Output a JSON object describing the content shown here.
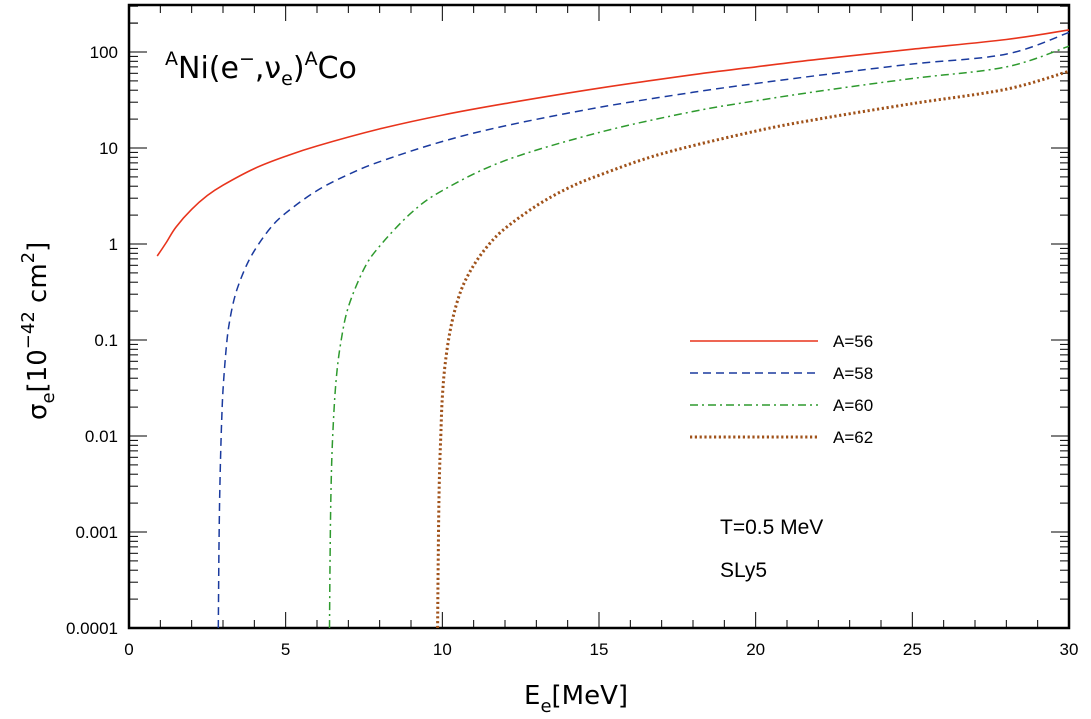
{
  "chart_data": {
    "type": "line",
    "title": "",
    "reaction": {
      "sup_a": "A",
      "ni": "Ni(e",
      "minus": "−",
      "comma": ",ν",
      "sub_e": "e",
      "close": ")",
      "sup_b": "A",
      "co": "Co"
    },
    "xlabel": {
      "main": "E",
      "sub": "e",
      "rest": "[MeV]"
    },
    "ylabel": {
      "sigma": "σ",
      "sub": "e",
      "open": "[10",
      "sup": "−42",
      "unit": " cm",
      "sup2": "2",
      "close": "]"
    },
    "xlim": [
      0,
      30
    ],
    "ylim": [
      0.0001,
      300
    ],
    "yscale": "log",
    "grid": false,
    "legend_position": "right-middle",
    "x_ticks": [
      0,
      5,
      10,
      15,
      20,
      25,
      30
    ],
    "x_tick_labels": [
      "0",
      "5",
      "10",
      "15",
      "20",
      "25",
      "30"
    ],
    "y_ticks": [
      0.0001,
      0.001,
      0.01,
      0.1,
      1,
      10,
      100
    ],
    "y_tick_labels": [
      "0.0001",
      "0.001",
      "0.01",
      "0.1",
      "1",
      "10",
      "100"
    ],
    "annotations": [
      "T=0.5 MeV",
      "SLy5"
    ],
    "series": [
      {
        "name": "A=56",
        "color": "#e8341c",
        "dash": "solid",
        "x": [
          0.9,
          1.2,
          1.5,
          2,
          2.5,
          3,
          4,
          5,
          6,
          8,
          10,
          12,
          15,
          18,
          20,
          22,
          25,
          28,
          30
        ],
        "y": [
          0.75,
          1.05,
          1.5,
          2.3,
          3.2,
          4.1,
          6.1,
          8.2,
          10.5,
          15.8,
          22,
          29,
          42,
          58,
          70,
          84,
          107,
          135,
          170
        ]
      },
      {
        "name": "A=58",
        "color": "#1a3a9e",
        "dash": "dashed",
        "x": [
          2.85,
          2.87,
          2.9,
          2.95,
          3.0,
          3.1,
          3.2,
          3.4,
          3.7,
          4,
          4.5,
          5,
          6,
          7,
          8,
          10,
          12,
          15,
          18,
          20,
          22,
          25,
          28,
          30
        ],
        "y": [
          0.0001,
          0.0006,
          0.003,
          0.012,
          0.03,
          0.08,
          0.15,
          0.3,
          0.55,
          0.85,
          1.45,
          2.1,
          3.6,
          5.3,
          7.2,
          11.7,
          17,
          26.5,
          38,
          47,
          57,
          75,
          95,
          160
        ]
      },
      {
        "name": "A=60",
        "color": "#2e9a2e",
        "dash": "dashdot",
        "x": [
          6.4,
          6.42,
          6.45,
          6.5,
          6.6,
          6.75,
          7,
          7.5,
          8,
          9,
          10,
          12,
          15,
          18,
          20,
          22,
          25,
          28,
          30
        ],
        "y": [
          0.0001,
          0.0007,
          0.003,
          0.01,
          0.035,
          0.09,
          0.22,
          0.55,
          0.95,
          2.1,
          3.6,
          7.4,
          14.5,
          24,
          31,
          39,
          53,
          70,
          115
        ]
      },
      {
        "name": "A=62",
        "color": "#a0521a",
        "dash": "dotted",
        "x": [
          9.85,
          9.87,
          9.9,
          9.95,
          10,
          10.1,
          10.3,
          10.6,
          11,
          11.5,
          12,
          13,
          14,
          15,
          17,
          20,
          22,
          25,
          28,
          30
        ],
        "y": [
          0.0001,
          0.0006,
          0.003,
          0.01,
          0.025,
          0.06,
          0.15,
          0.33,
          0.6,
          1.0,
          1.45,
          2.5,
          3.8,
          5.2,
          8.7,
          15,
          20,
          29,
          41,
          63
        ]
      }
    ]
  }
}
